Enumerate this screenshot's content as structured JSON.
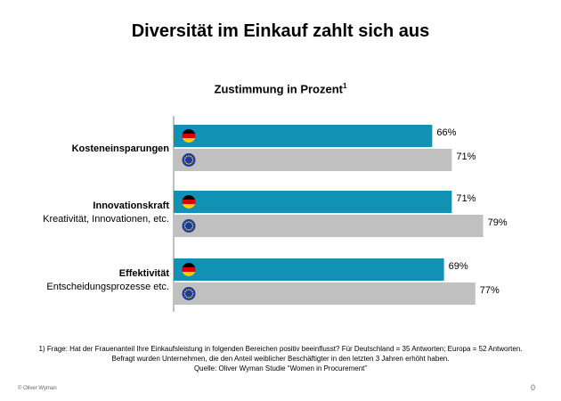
{
  "title": "Diversität im Einkauf zahlt sich aus",
  "subtitle": "Zustimmung in Prozent",
  "subtitle_note": "1",
  "colors": {
    "de": "#1192b5",
    "eu": "#c0c0c0"
  },
  "chart_data": {
    "type": "bar",
    "orientation": "horizontal",
    "title": "Zustimmung in Prozent",
    "categories": [
      {
        "label": "Kosteneinsparungen",
        "sublabel": ""
      },
      {
        "label": "Innovationskraft",
        "sublabel": "Kreativität, Innovationen, etc."
      },
      {
        "label": "Effektivität",
        "sublabel": "Entscheidungsprozesse etc."
      }
    ],
    "series": [
      {
        "flag": "de-flag-icon",
        "color": "#1192b5",
        "values": [
          66,
          71,
          69
        ],
        "labels": [
          "66%",
          "71%",
          "69%"
        ]
      },
      {
        "flag": "eu-flag-icon",
        "color": "#c0c0c0",
        "values": [
          71,
          79,
          77
        ],
        "labels": [
          "71%",
          "79%",
          "77%"
        ]
      }
    ],
    "xlim": [
      0,
      100
    ],
    "grid": false,
    "legend": "none"
  },
  "footnote": {
    "line1": "1)    Frage: Hat der Frauenanteil Ihre Einkaufsleistung in folgenden Bereichen positiv beeinflusst? Für Deutschland  = 35 Antworten; Europa = 52 Antworten.",
    "line2": "Befragt wurden Unternehmen, die den Anteil weiblicher Beschäftigter  in den letzten 3 Jahren erhöht haben.",
    "line3": "Quelle: Oliver Wyman Studie “Women in Procurement”"
  },
  "copyright": "© Oliver Wyman",
  "page_number": "0"
}
